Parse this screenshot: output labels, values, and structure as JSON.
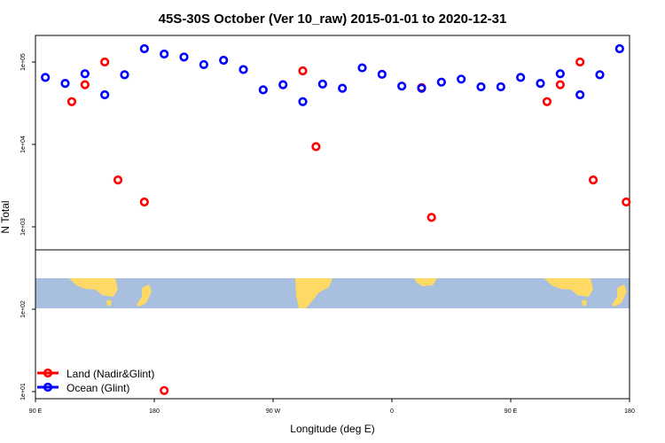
{
  "chart_data": {
    "type": "scatter",
    "title": "45S-30S October (Ver 10_raw)   2015-01-01 to 2020-12-31",
    "xlabel": "Longitude (deg E)",
    "ylabel": "N Total",
    "y_scale": "log",
    "ylim": [
      10,
      300000
    ],
    "x_ticks": [
      {
        "x": 90,
        "label": "90 E"
      },
      {
        "x": 180,
        "label": "180"
      },
      {
        "x": 270,
        "label": "90 W"
      },
      {
        "x": 360,
        "label": "0"
      },
      {
        "x": 450,
        "label": "90 E"
      },
      {
        "x": 540,
        "label": "180"
      }
    ],
    "xlim": [
      90,
      540
    ],
    "y_ticks": [
      {
        "y": 10,
        "label": "1e+01"
      },
      {
        "y": 100,
        "label": "1e+02"
      },
      {
        "y": 1000,
        "label": "1e+03"
      },
      {
        "y": 10000,
        "label": "1e+04"
      },
      {
        "y": 100000,
        "label": "1e+05"
      }
    ],
    "series": [
      {
        "name": "Land (Nadir&Glint)",
        "color": "#ff0000",
        "points": [
          {
            "x": 117.5,
            "y": 33000
          },
          {
            "x": 127.5,
            "y": 53000
          },
          {
            "x": 142.5,
            "y": 100000
          },
          {
            "x": 152.5,
            "y": 3700
          },
          {
            "x": 172.5,
            "y": 2000
          },
          {
            "x": 187.5,
            "y": 10.3
          },
          {
            "x": 292.5,
            "y": 78000
          },
          {
            "x": 302.5,
            "y": 9400
          },
          {
            "x": 382.5,
            "y": 49000
          },
          {
            "x": 390,
            "y": 1300
          },
          {
            "x": 477.5,
            "y": 33000
          },
          {
            "x": 487.5,
            "y": 53000
          },
          {
            "x": 502.5,
            "y": 100000
          },
          {
            "x": 512.5,
            "y": 3700
          },
          {
            "x": 537.5,
            "y": 2000
          }
        ]
      },
      {
        "name": "Ocean (Glint)",
        "color": "#0000ff",
        "points": [
          {
            "x": 97.5,
            "y": 65000
          },
          {
            "x": 112.5,
            "y": 55000
          },
          {
            "x": 127.5,
            "y": 72000
          },
          {
            "x": 142.5,
            "y": 40000
          },
          {
            "x": 157.5,
            "y": 70000
          },
          {
            "x": 172.5,
            "y": 145000
          },
          {
            "x": 187.5,
            "y": 125000
          },
          {
            "x": 202.5,
            "y": 115000
          },
          {
            "x": 217.5,
            "y": 93000
          },
          {
            "x": 232.5,
            "y": 105000
          },
          {
            "x": 247.5,
            "y": 81000
          },
          {
            "x": 262.5,
            "y": 46000
          },
          {
            "x": 277.5,
            "y": 53000
          },
          {
            "x": 292.5,
            "y": 33000
          },
          {
            "x": 307.5,
            "y": 54000
          },
          {
            "x": 322.5,
            "y": 48000
          },
          {
            "x": 337.5,
            "y": 85000
          },
          {
            "x": 352.5,
            "y": 71000
          },
          {
            "x": 367.5,
            "y": 51000
          },
          {
            "x": 382.5,
            "y": 48000
          },
          {
            "x": 397.5,
            "y": 57000
          },
          {
            "x": 412.5,
            "y": 62000
          },
          {
            "x": 427.5,
            "y": 50000
          },
          {
            "x": 442.5,
            "y": 50000
          },
          {
            "x": 457.5,
            "y": 65000
          },
          {
            "x": 472.5,
            "y": 55000
          },
          {
            "x": 487.5,
            "y": 72000
          },
          {
            "x": 502.5,
            "y": 40000
          },
          {
            "x": 517.5,
            "y": 70000
          },
          {
            "x": 532.5,
            "y": 145000
          }
        ]
      }
    ],
    "legend": {
      "position": "bottom-left"
    },
    "inset_map": {
      "ocean_color": "#a8bfdf",
      "land_color": "#ffd966",
      "divider_y": 3500
    }
  }
}
